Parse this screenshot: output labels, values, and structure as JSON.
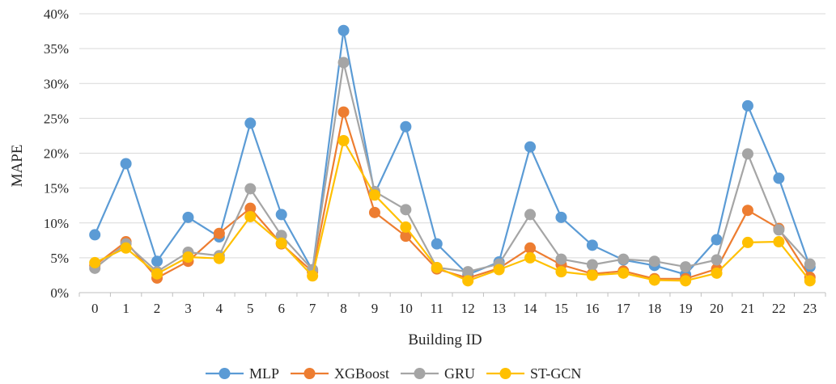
{
  "chart_data": {
    "type": "line",
    "title": "",
    "xlabel": "Building ID",
    "ylabel": "MAPE",
    "categories": [
      "0",
      "1",
      "2",
      "3",
      "4",
      "5",
      "6",
      "7",
      "8",
      "9",
      "10",
      "11",
      "12",
      "13",
      "14",
      "15",
      "16",
      "17",
      "18",
      "19",
      "20",
      "21",
      "22",
      "23"
    ],
    "ylim": [
      0,
      40
    ],
    "yticks": [
      "0%",
      "5%",
      "10%",
      "15%",
      "20%",
      "25%",
      "30%",
      "35%",
      "40%"
    ],
    "ytick_values": [
      0,
      5,
      10,
      15,
      20,
      25,
      30,
      35,
      40
    ],
    "grid": "horizontal",
    "legend_position": "bottom",
    "series": [
      {
        "name": "MLP",
        "color": "#5B9BD5",
        "values": [
          8.3,
          18.5,
          4.5,
          10.8,
          8.0,
          24.3,
          11.2,
          3.2,
          37.6,
          14.2,
          23.8,
          7.0,
          2.6,
          4.4,
          20.9,
          10.8,
          6.8,
          4.7,
          3.9,
          2.6,
          7.6,
          26.8,
          16.4,
          3.7
        ]
      },
      {
        "name": "XGBoost",
        "color": "#ED7D31",
        "values": [
          3.9,
          7.3,
          2.1,
          4.5,
          8.5,
          12.1,
          7.0,
          3.0,
          25.9,
          11.5,
          8.1,
          3.4,
          2.1,
          3.5,
          6.4,
          4.0,
          2.7,
          3.1,
          2.0,
          2.0,
          3.4,
          11.8,
          9.2,
          2.2
        ]
      },
      {
        "name": "GRU",
        "color": "#A5A5A5",
        "values": [
          3.5,
          7.0,
          3.0,
          5.8,
          5.3,
          14.9,
          8.2,
          3.3,
          33.0,
          14.5,
          11.9,
          3.6,
          3.0,
          4.1,
          11.2,
          4.8,
          4.0,
          4.8,
          4.5,
          3.7,
          4.7,
          19.9,
          9.0,
          4.1
        ]
      },
      {
        "name": "ST-GCN",
        "color": "#FFC000",
        "values": [
          4.3,
          6.4,
          2.7,
          5.1,
          4.9,
          10.9,
          7.1,
          2.4,
          21.8,
          14.0,
          9.4,
          3.6,
          1.7,
          3.3,
          5.0,
          3.0,
          2.5,
          2.8,
          1.8,
          1.7,
          2.8,
          7.2,
          7.3,
          1.7
        ]
      }
    ]
  }
}
